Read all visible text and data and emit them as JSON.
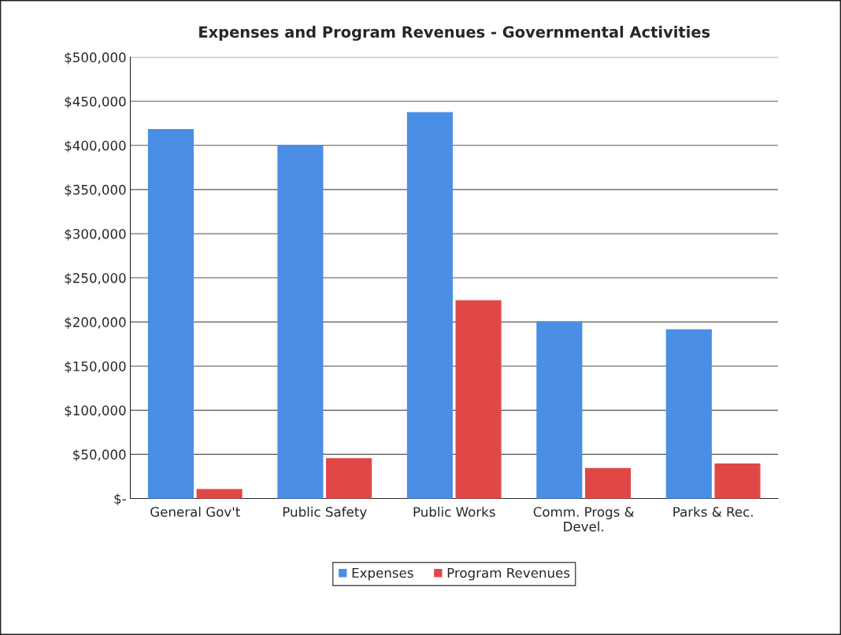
{
  "chart_data": {
    "type": "bar",
    "title": "Expenses and Program Revenues - Governmental Activities",
    "categories": [
      "General Gov't",
      "Public Safety",
      "Public Works",
      "Comm. Progs &\nDevel.",
      "Parks & Rec."
    ],
    "series": [
      {
        "name": "Expenses",
        "color": "#4a8ee6",
        "values": [
          418000,
          400000,
          437000,
          200000,
          191000
        ]
      },
      {
        "name": "Program Revenues",
        "color": "#e04848",
        "values": [
          10000,
          45000,
          224000,
          34000,
          39000
        ]
      }
    ],
    "ylim": [
      0,
      500000
    ],
    "yticks": [
      {
        "value": 0,
        "label": "$-"
      },
      {
        "value": 50000,
        "label": "$50,000"
      },
      {
        "value": 100000,
        "label": "$100,000"
      },
      {
        "value": 150000,
        "label": "$150,000"
      },
      {
        "value": 200000,
        "label": "$200,000"
      },
      {
        "value": 250000,
        "label": "$250,000"
      },
      {
        "value": 300000,
        "label": "$300,000"
      },
      {
        "value": 350000,
        "label": "$350,000"
      },
      {
        "value": 400000,
        "label": "$400,000"
      },
      {
        "value": 450000,
        "label": "$450,000"
      },
      {
        "value": 500000,
        "label": "$500,000"
      }
    ],
    "grid": "y",
    "legend": "bottom"
  }
}
